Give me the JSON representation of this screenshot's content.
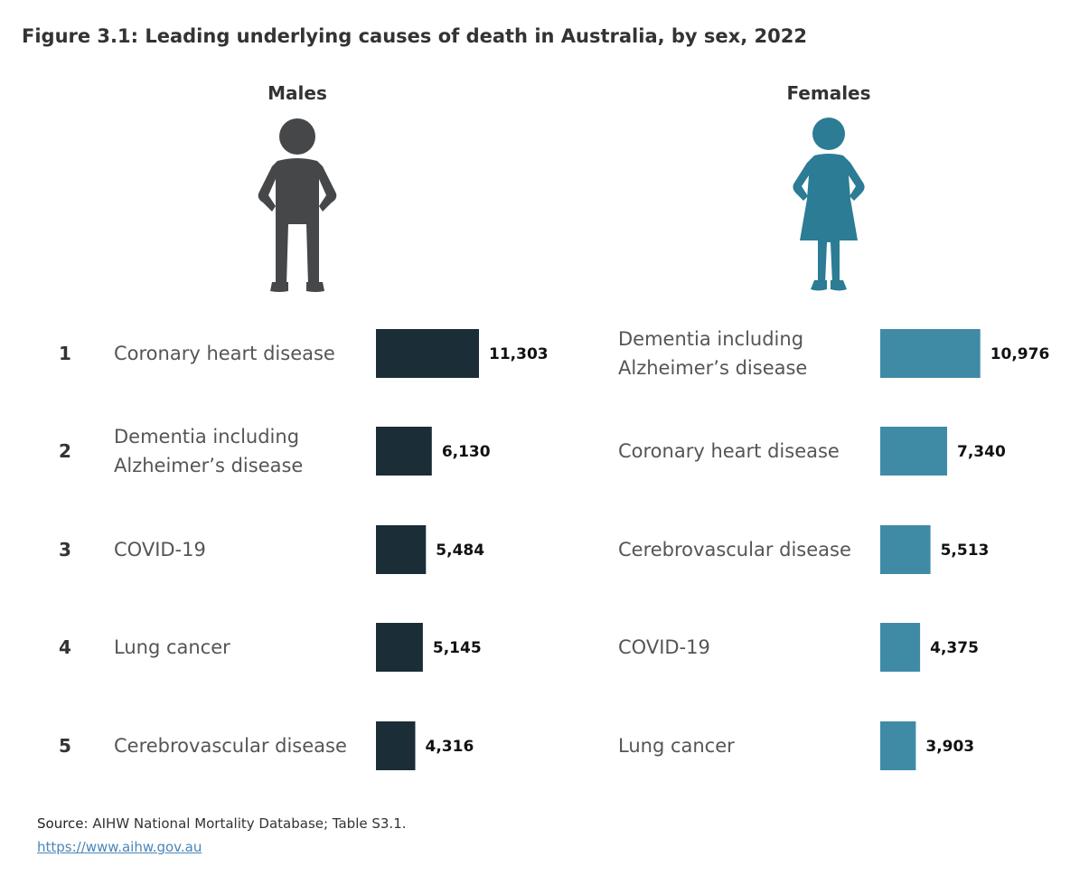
{
  "title": "Figure 3.1: Leading underlying causes of death in Australia, by sex, 2022",
  "colors": {
    "male_bar": "#1b2d36",
    "female_bar": "#3f8ba6",
    "male_icon": "#454749",
    "female_icon": "#2b7c94",
    "text": "#333333",
    "link": "#4a86b8"
  },
  "icons": {
    "male": "male-figure-icon",
    "female": "female-figure-icon"
  },
  "chart_data": [
    {
      "type": "bar",
      "title": "Males",
      "ranks": [
        "1",
        "2",
        "3",
        "4",
        "5"
      ],
      "categories": [
        [
          "Coronary heart disease"
        ],
        [
          "Dementia including",
          "Alzheimer’s disease"
        ],
        [
          "COVID-19"
        ],
        [
          "Lung cancer"
        ],
        [
          "Cerebrovascular disease"
        ]
      ],
      "values": [
        11303,
        6130,
        5484,
        5145,
        4316
      ],
      "value_labels": [
        "11,303",
        "6,130",
        "5,484",
        "5,145",
        "4,316"
      ],
      "color": "#1b2d36"
    },
    {
      "type": "bar",
      "title": "Females",
      "categories": [
        [
          "Dementia including",
          "Alzheimer’s disease"
        ],
        [
          "Coronary heart disease"
        ],
        [
          "Cerebrovascular disease"
        ],
        [
          "COVID-19"
        ],
        [
          "Lung cancer"
        ]
      ],
      "values": [
        10976,
        7340,
        5513,
        4375,
        3903
      ],
      "value_labels": [
        "10,976",
        "7,340",
        "5,513",
        "4,375",
        "3,903"
      ],
      "color": "#3f8ba6"
    }
  ],
  "source": {
    "label": "Source",
    "text": ": AIHW National Mortality Database; Table S3.1.",
    "url": "https://www.aihw.gov.au"
  }
}
